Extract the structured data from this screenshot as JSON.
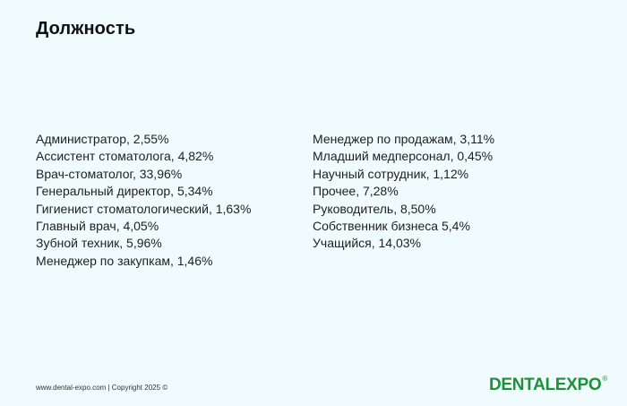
{
  "title": "Должность",
  "left_items": [
    "Администратор, 2,55%",
    "Ассистент стоматолога, 4,82%",
    "Врач-стоматолог, 33,96%",
    "Генеральный директор, 5,34%",
    "Гигиенист стоматологический, 1,63%",
    "Главный врач, 4,05%",
    "Зубной техник, 5,96%",
    "Менеджер по закупкам, 1,46%"
  ],
  "right_items": [
    "Менеджер по продажам, 3,11%",
    "Младший медперсонал, 0,45%",
    "Научный сотрудник, 1,12%",
    "Прочее, 7,28%",
    "Руководитель, 8,50%",
    "Собственник бизнеса 5,4%",
    "Учащийся, 14,03%"
  ],
  "footer": {
    "text": "www.dental-expo.com | Copyright 2025 ©"
  },
  "logo": {
    "text": "DENTALEXPO",
    "mark": "®",
    "color": "#1f8f3a"
  }
}
